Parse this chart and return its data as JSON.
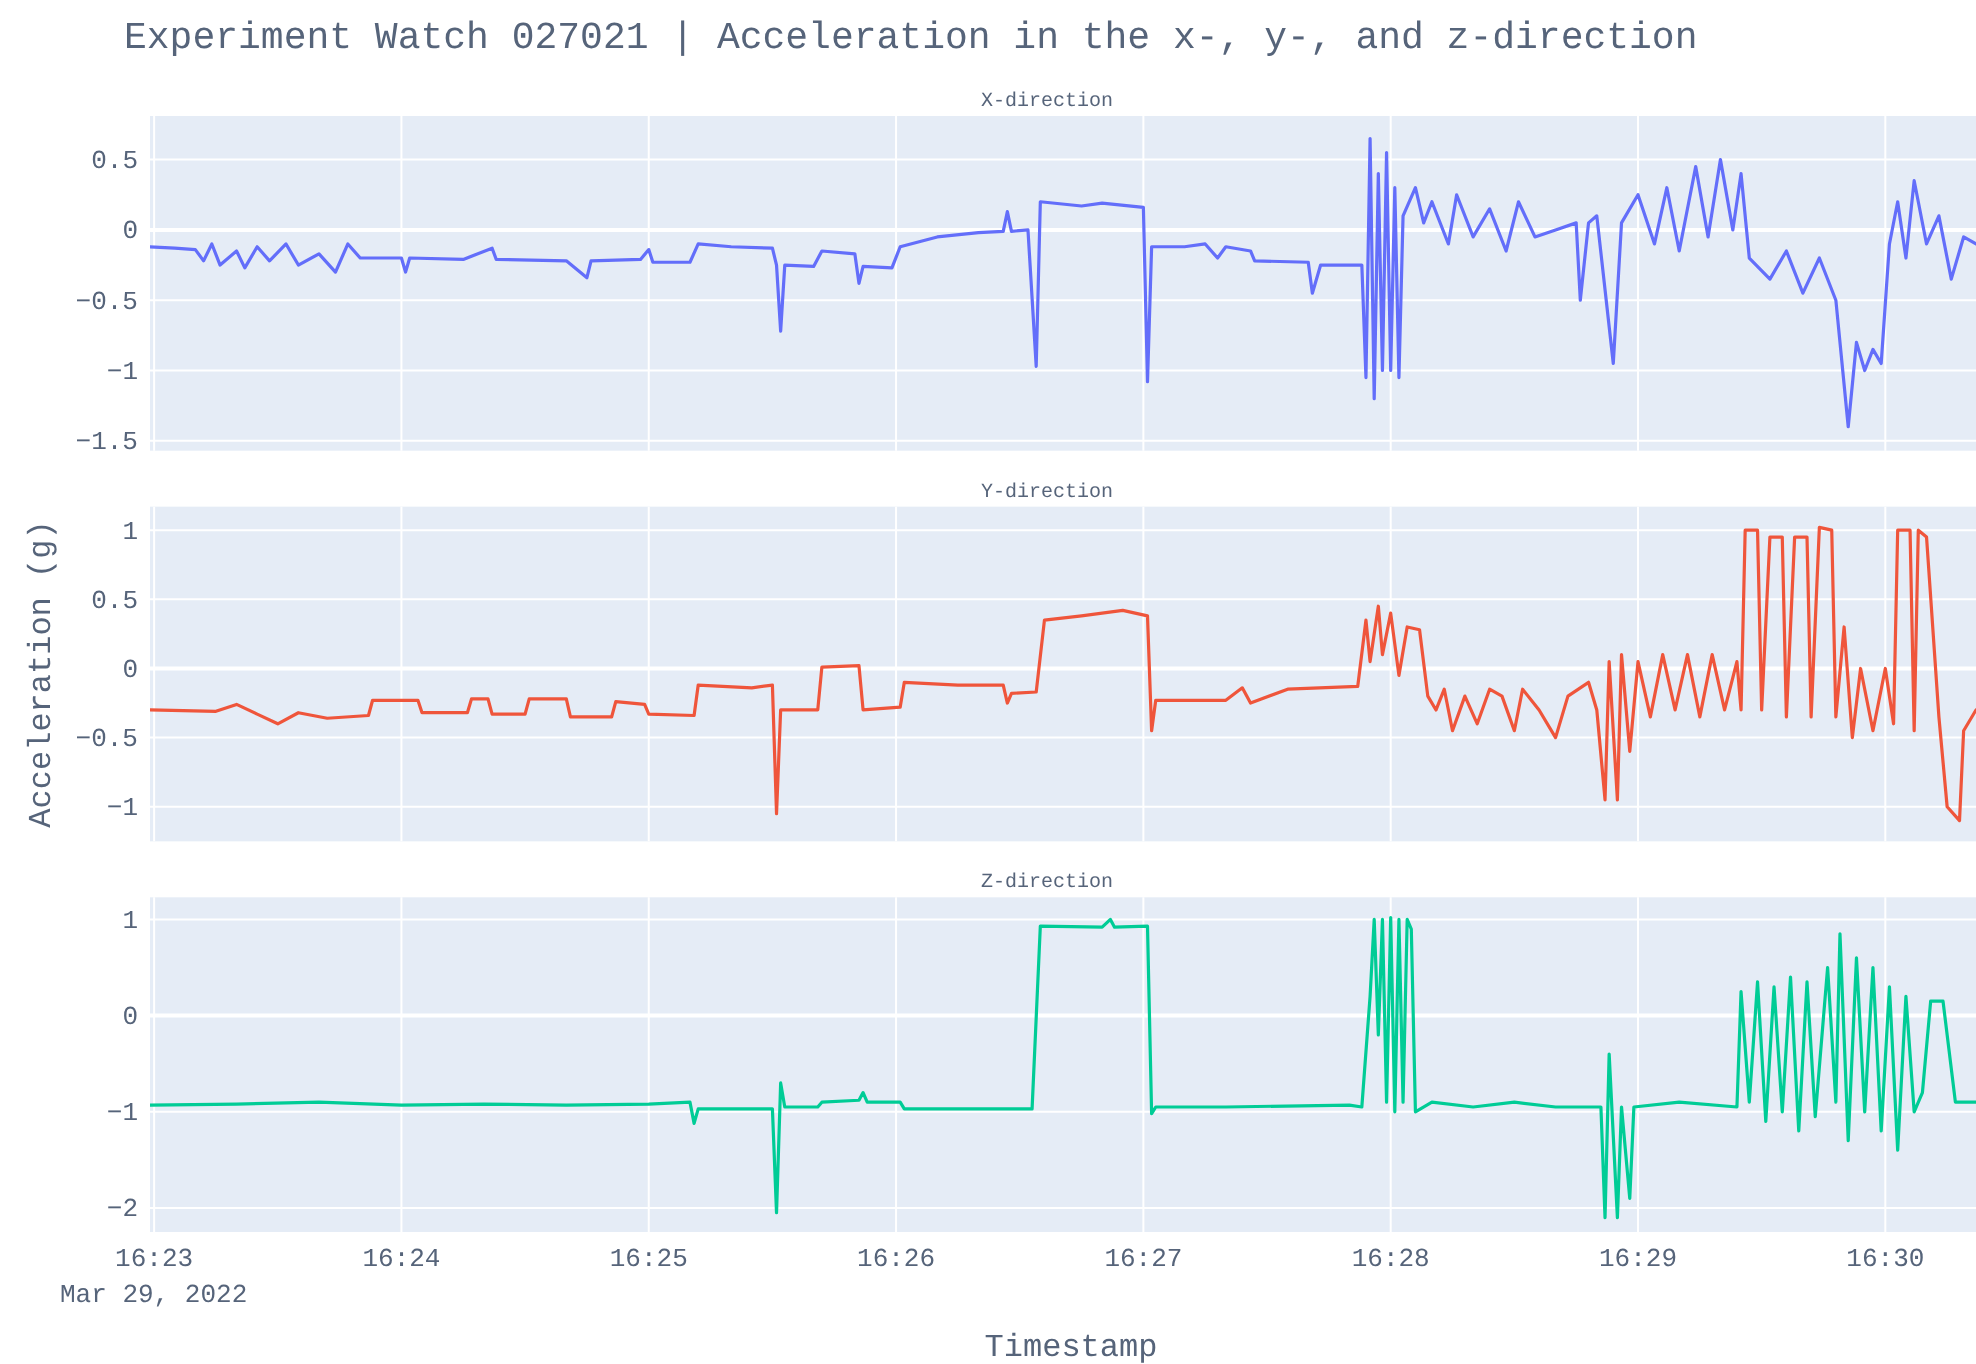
{
  "chart_data": [
    {
      "type": "line",
      "title": "Experiment Watch 027021 | Acceleration in the x-, y-, and z-direction",
      "subtitle": "X-direction",
      "grid": true,
      "tick_labels": "y",
      "xlim": [
        "2022-03-29T16:22:59",
        "2022-03-29T16:30:22"
      ],
      "xticks": [
        {
          "value": "2022-03-29T16:23",
          "label": null
        },
        {
          "value": "2022-03-29T16:24",
          "label": null
        },
        {
          "value": "2022-03-29T16:25",
          "label": null
        },
        {
          "value": "2022-03-29T16:26",
          "label": null
        },
        {
          "value": "2022-03-29T16:27",
          "label": null
        },
        {
          "value": "2022-03-29T16:28",
          "label": null
        },
        {
          "value": "2022-03-29T16:29",
          "label": null
        },
        {
          "value": "2022-03-29T16:30",
          "label": null
        }
      ],
      "ylim": [
        -1.57,
        0.81
      ],
      "yticks": [
        {
          "value": -1.5,
          "label": "−1.5"
        },
        {
          "value": -1,
          "label": "−1"
        },
        {
          "value": -0.5,
          "label": "−0.5"
        },
        0,
        0.5
      ],
      "series": [
        {
          "color": "#636efa",
          "x": [
            "2022-03-29T16:22:59",
            "2022-03-29T16:23:05",
            "2022-03-29T16:23:10",
            "2022-03-29T16:23:12",
            "2022-03-29T16:23:14",
            "2022-03-29T16:23:16",
            "2022-03-29T16:23:20",
            "2022-03-29T16:23:22",
            "2022-03-29T16:23:25",
            "2022-03-29T16:23:28",
            "2022-03-29T16:23:32",
            "2022-03-29T16:23:35",
            "2022-03-29T16:23:40",
            "2022-03-29T16:23:44",
            "2022-03-29T16:23:47",
            "2022-03-29T16:23:50",
            "2022-03-29T16:24:00",
            "2022-03-29T16:24:01",
            "2022-03-29T16:24:02",
            "2022-03-29T16:24:15",
            "2022-03-29T16:24:22",
            "2022-03-29T16:24:23",
            "2022-03-29T16:24:40",
            "2022-03-29T16:24:45",
            "2022-03-29T16:24:46",
            "2022-03-29T16:24:58",
            "2022-03-29T16:25:00",
            "2022-03-29T16:25:01",
            "2022-03-29T16:25:10",
            "2022-03-29T16:25:12",
            "2022-03-29T16:25:20",
            "2022-03-29T16:25:30",
            "2022-03-29T16:25:31",
            "2022-03-29T16:25:32",
            "2022-03-29T16:25:33",
            "2022-03-29T16:25:40",
            "2022-03-29T16:25:42",
            "2022-03-29T16:25:50",
            "2022-03-29T16:25:51",
            "2022-03-29T16:25:52",
            "2022-03-29T16:25:59",
            "2022-03-29T16:26:01",
            "2022-03-29T16:26:10",
            "2022-03-29T16:26:20",
            "2022-03-29T16:26:26",
            "2022-03-29T16:26:27",
            "2022-03-29T16:26:28",
            "2022-03-29T16:26:32",
            "2022-03-29T16:26:34",
            "2022-03-29T16:26:35",
            "2022-03-29T16:26:45",
            "2022-03-29T16:26:50",
            "2022-03-29T16:27:00",
            "2022-03-29T16:27:01",
            "2022-03-29T16:27:02",
            "2022-03-29T16:27:10",
            "2022-03-29T16:27:15",
            "2022-03-29T16:27:18",
            "2022-03-29T16:27:20",
            "2022-03-29T16:27:26",
            "2022-03-29T16:27:27",
            "2022-03-29T16:27:40",
            "2022-03-29T16:27:41",
            "2022-03-29T16:27:43",
            "2022-03-29T16:27:53",
            "2022-03-29T16:27:54",
            "2022-03-29T16:27:55",
            "2022-03-29T16:27:56",
            "2022-03-29T16:27:57",
            "2022-03-29T16:27:58",
            "2022-03-29T16:27:59",
            "2022-03-29T16:28:00",
            "2022-03-29T16:28:01",
            "2022-03-29T16:28:02",
            "2022-03-29T16:28:03",
            "2022-03-29T16:28:06",
            "2022-03-29T16:28:08",
            "2022-03-29T16:28:10",
            "2022-03-29T16:28:14",
            "2022-03-29T16:28:16",
            "2022-03-29T16:28:20",
            "2022-03-29T16:28:24",
            "2022-03-29T16:28:28",
            "2022-03-29T16:28:31",
            "2022-03-29T16:28:35",
            "2022-03-29T16:28:40",
            "2022-03-29T16:28:45",
            "2022-03-29T16:28:46",
            "2022-03-29T16:28:48",
            "2022-03-29T16:28:50",
            "2022-03-29T16:28:54",
            "2022-03-29T16:28:56",
            "2022-03-29T16:29:00",
            "2022-03-29T16:29:04",
            "2022-03-29T16:29:07",
            "2022-03-29T16:29:10",
            "2022-03-29T16:29:14",
            "2022-03-29T16:29:17",
            "2022-03-29T16:29:20",
            "2022-03-29T16:29:23",
            "2022-03-29T16:29:25",
            "2022-03-29T16:29:27",
            "2022-03-29T16:29:32",
            "2022-03-29T16:29:36",
            "2022-03-29T16:29:40",
            "2022-03-29T16:29:44",
            "2022-03-29T16:29:48",
            "2022-03-29T16:29:51",
            "2022-03-29T16:29:53",
            "2022-03-29T16:29:55",
            "2022-03-29T16:29:57",
            "2022-03-29T16:29:59",
            "2022-03-29T16:30:01",
            "2022-03-29T16:30:03",
            "2022-03-29T16:30:05",
            "2022-03-29T16:30:07",
            "2022-03-29T16:30:10",
            "2022-03-29T16:30:13",
            "2022-03-29T16:30:16",
            "2022-03-29T16:30:19",
            "2022-03-29T16:30:22"
          ],
          "values": [
            -0.12,
            -0.13,
            -0.14,
            -0.22,
            -0.1,
            -0.25,
            -0.15,
            -0.27,
            -0.12,
            -0.22,
            -0.1,
            -0.25,
            -0.17,
            -0.3,
            -0.1,
            -0.2,
            -0.2,
            -0.3,
            -0.2,
            -0.21,
            -0.13,
            -0.21,
            -0.22,
            -0.34,
            -0.22,
            -0.21,
            -0.14,
            -0.23,
            -0.23,
            -0.1,
            -0.12,
            -0.13,
            -0.25,
            -0.72,
            -0.25,
            -0.26,
            -0.15,
            -0.17,
            -0.38,
            -0.26,
            -0.27,
            -0.12,
            -0.05,
            -0.02,
            -0.01,
            0.13,
            -0.01,
            0,
            -0.97,
            0.2,
            0.17,
            0.19,
            0.16,
            -1.08,
            -0.12,
            -0.12,
            -0.1,
            -0.2,
            -0.12,
            -0.15,
            -0.22,
            -0.23,
            -0.45,
            -0.25,
            -0.25,
            -1.05,
            0.65,
            -1.2,
            0.4,
            -1,
            0.55,
            -1,
            0.3,
            -1.05,
            0.1,
            0.3,
            0.05,
            0.2,
            -0.1,
            0.25,
            -0.05,
            0.15,
            -0.15,
            0.2,
            -0.05,
            0,
            0.05,
            -0.5,
            0.05,
            0.1,
            -0.95,
            0.05,
            0.25,
            -0.1,
            0.3,
            -0.15,
            0.45,
            -0.05,
            0.5,
            0,
            0.4,
            -0.2,
            -0.35,
            -0.15,
            -0.45,
            -0.2,
            -0.5,
            -1.4,
            -0.8,
            -1,
            -0.85,
            -0.95,
            -0.1,
            0.2,
            -0.2,
            0.35,
            -0.1,
            0.1,
            -0.35,
            -0.05,
            -0.1
          ]
        }
      ]
    },
    {
      "type": "line",
      "subtitle": "Y-direction",
      "ylabel": "Acceleration (g)",
      "grid": true,
      "tick_labels": "y",
      "xlim": [
        "2022-03-29T16:22:59",
        "2022-03-29T16:30:22"
      ],
      "xticks": [
        {
          "value": "2022-03-29T16:23",
          "label": null
        },
        {
          "value": "2022-03-29T16:24",
          "label": null
        },
        {
          "value": "2022-03-29T16:25",
          "label": null
        },
        {
          "value": "2022-03-29T16:26",
          "label": null
        },
        {
          "value": "2022-03-29T16:27",
          "label": null
        },
        {
          "value": "2022-03-29T16:28",
          "label": null
        },
        {
          "value": "2022-03-29T16:29",
          "label": null
        },
        {
          "value": "2022-03-29T16:30",
          "label": null
        }
      ],
      "ylim": [
        -1.25,
        1.17
      ],
      "yticks": [
        {
          "value": -1,
          "label": "−1"
        },
        {
          "value": -0.5,
          "label": "−0.5"
        },
        0,
        0.5,
        1
      ],
      "series": [
        {
          "color": "#ef553b",
          "x": [
            "2022-03-29T16:22:59",
            "2022-03-29T16:23:15",
            "2022-03-29T16:23:20",
            "2022-03-29T16:23:25",
            "2022-03-29T16:23:30",
            "2022-03-29T16:23:35",
            "2022-03-29T16:23:42",
            "2022-03-29T16:23:52",
            "2022-03-29T16:23:53",
            "2022-03-29T16:24:04",
            "2022-03-29T16:24:05",
            "2022-03-29T16:24:16",
            "2022-03-29T16:24:17",
            "2022-03-29T16:24:21",
            "2022-03-29T16:24:22",
            "2022-03-29T16:24:30",
            "2022-03-29T16:24:31",
            "2022-03-29T16:24:40",
            "2022-03-29T16:24:41",
            "2022-03-29T16:24:51",
            "2022-03-29T16:24:52",
            "2022-03-29T16:24:59",
            "2022-03-29T16:25:00",
            "2022-03-29T16:25:11",
            "2022-03-29T16:25:12",
            "2022-03-29T16:25:25",
            "2022-03-29T16:25:30",
            "2022-03-29T16:25:31",
            "2022-03-29T16:25:32",
            "2022-03-29T16:25:41",
            "2022-03-29T16:25:42",
            "2022-03-29T16:25:51",
            "2022-03-29T16:25:52",
            "2022-03-29T16:26:01",
            "2022-03-29T16:26:02",
            "2022-03-29T16:26:15",
            "2022-03-29T16:26:26",
            "2022-03-29T16:26:27",
            "2022-03-29T16:26:28",
            "2022-03-29T16:26:34",
            "2022-03-29T16:26:36",
            "2022-03-29T16:26:45",
            "2022-03-29T16:26:55",
            "2022-03-29T16:27:01",
            "2022-03-29T16:27:02",
            "2022-03-29T16:27:03",
            "2022-03-29T16:27:20",
            "2022-03-29T16:27:24",
            "2022-03-29T16:27:26",
            "2022-03-29T16:27:35",
            "2022-03-29T16:27:52",
            "2022-03-29T16:27:54",
            "2022-03-29T16:27:55",
            "2022-03-29T16:27:57",
            "2022-03-29T16:27:58",
            "2022-03-29T16:28:00",
            "2022-03-29T16:28:02",
            "2022-03-29T16:28:04",
            "2022-03-29T16:28:07",
            "2022-03-29T16:28:09",
            "2022-03-29T16:28:11",
            "2022-03-29T16:28:13",
            "2022-03-29T16:28:15",
            "2022-03-29T16:28:18",
            "2022-03-29T16:28:21",
            "2022-03-29T16:28:24",
            "2022-03-29T16:28:27",
            "2022-03-29T16:28:30",
            "2022-03-29T16:28:32",
            "2022-03-29T16:28:36",
            "2022-03-29T16:28:40",
            "2022-03-29T16:28:43",
            "2022-03-29T16:28:48",
            "2022-03-29T16:28:50",
            "2022-03-29T16:28:52",
            "2022-03-29T16:28:53",
            "2022-03-29T16:28:55",
            "2022-03-29T16:28:56",
            "2022-03-29T16:28:58",
            "2022-03-29T16:29:00",
            "2022-03-29T16:29:03",
            "2022-03-29T16:29:06",
            "2022-03-29T16:29:09",
            "2022-03-29T16:29:12",
            "2022-03-29T16:29:15",
            "2022-03-29T16:29:18",
            "2022-03-29T16:29:21",
            "2022-03-29T16:29:24",
            "2022-03-29T16:29:25",
            "2022-03-29T16:29:26",
            "2022-03-29T16:29:29",
            "2022-03-29T16:29:30",
            "2022-03-29T16:29:32",
            "2022-03-29T16:29:35",
            "2022-03-29T16:29:36",
            "2022-03-29T16:29:38",
            "2022-03-29T16:29:41",
            "2022-03-29T16:29:42",
            "2022-03-29T16:29:44",
            "2022-03-29T16:29:47",
            "2022-03-29T16:29:48",
            "2022-03-29T16:29:50",
            "2022-03-29T16:29:52",
            "2022-03-29T16:29:54",
            "2022-03-29T16:29:57",
            "2022-03-29T16:30:00",
            "2022-03-29T16:30:02",
            "2022-03-29T16:30:03",
            "2022-03-29T16:30:06",
            "2022-03-29T16:30:07",
            "2022-03-29T16:30:08",
            "2022-03-29T16:30:10",
            "2022-03-29T16:30:13",
            "2022-03-29T16:30:15",
            "2022-03-29T16:30:18",
            "2022-03-29T16:30:19",
            "2022-03-29T16:30:22"
          ],
          "values": [
            -0.3,
            -0.31,
            -0.26,
            -0.33,
            -0.4,
            -0.32,
            -0.36,
            -0.34,
            -0.23,
            -0.23,
            -0.32,
            -0.32,
            -0.22,
            -0.22,
            -0.33,
            -0.33,
            -0.22,
            -0.22,
            -0.35,
            -0.35,
            -0.24,
            -0.26,
            -0.33,
            -0.34,
            -0.12,
            -0.14,
            -0.12,
            -1.05,
            -0.3,
            -0.3,
            0.01,
            0.02,
            -0.3,
            -0.28,
            -0.1,
            -0.12,
            -0.12,
            -0.25,
            -0.18,
            -0.17,
            0.35,
            0.38,
            0.42,
            0.38,
            -0.45,
            -0.23,
            -0.23,
            -0.14,
            -0.25,
            -0.15,
            -0.13,
            0.35,
            0.05,
            0.45,
            0.1,
            0.4,
            -0.05,
            0.3,
            0.28,
            -0.2,
            -0.3,
            -0.15,
            -0.45,
            -0.2,
            -0.4,
            -0.15,
            -0.2,
            -0.45,
            -0.15,
            -0.3,
            -0.5,
            -0.2,
            -0.1,
            -0.3,
            -0.95,
            0.05,
            -0.95,
            0.1,
            -0.6,
            0.05,
            -0.35,
            0.1,
            -0.3,
            0.1,
            -0.35,
            0.1,
            -0.3,
            0.05,
            -0.3,
            1,
            1,
            -0.3,
            0.95,
            0.95,
            -0.35,
            0.95,
            0.95,
            -0.35,
            1.02,
            1,
            -0.35,
            0.3,
            -0.5,
            0,
            -0.45,
            0,
            -0.4,
            1,
            1,
            -0.45,
            1,
            0.95,
            -0.35,
            -1,
            -1.1,
            -0.45,
            -0.3
          ]
        }
      ]
    },
    {
      "type": "line",
      "subtitle": "Z-direction",
      "xlabel": "Timestamp",
      "annotations": [
        "Mar 29, 2022"
      ],
      "grid": true,
      "xlim": [
        "2022-03-29T16:22:59",
        "2022-03-29T16:30:22"
      ],
      "xticks": [
        {
          "value": "2022-03-29T16:23",
          "label": "16:23"
        },
        {
          "value": "2022-03-29T16:24",
          "label": "16:24"
        },
        {
          "value": "2022-03-29T16:25",
          "label": "16:25"
        },
        {
          "value": "2022-03-29T16:26",
          "label": "16:26"
        },
        {
          "value": "2022-03-29T16:27",
          "label": "16:27"
        },
        {
          "value": "2022-03-29T16:28",
          "label": "16:28"
        },
        {
          "value": "2022-03-29T16:29",
          "label": "16:29"
        },
        {
          "value": "2022-03-29T16:30",
          "label": "16:30"
        }
      ],
      "ylim": [
        -2.25,
        1.23
      ],
      "yticks": [
        {
          "value": -2,
          "label": "−2"
        },
        {
          "value": -1,
          "label": "−1"
        },
        0,
        1
      ],
      "series": [
        {
          "color": "#00cc96",
          "x": [
            "2022-03-29T16:22:59",
            "2022-03-29T16:23:20",
            "2022-03-29T16:23:40",
            "2022-03-29T16:24:00",
            "2022-03-29T16:24:20",
            "2022-03-29T16:24:40",
            "2022-03-29T16:25:00",
            "2022-03-29T16:25:10",
            "2022-03-29T16:25:11",
            "2022-03-29T16:25:12",
            "2022-03-29T16:25:30",
            "2022-03-29T16:25:31",
            "2022-03-29T16:25:32",
            "2022-03-29T16:25:33",
            "2022-03-29T16:25:41",
            "2022-03-29T16:25:42",
            "2022-03-29T16:25:51",
            "2022-03-29T16:25:52",
            "2022-03-29T16:25:53",
            "2022-03-29T16:26:01",
            "2022-03-29T16:26:02",
            "2022-03-29T16:26:33",
            "2022-03-29T16:26:35",
            "2022-03-29T16:26:50",
            "2022-03-29T16:26:52",
            "2022-03-29T16:26:53",
            "2022-03-29T16:27:01",
            "2022-03-29T16:27:02",
            "2022-03-29T16:27:03",
            "2022-03-29T16:27:20",
            "2022-03-29T16:27:50",
            "2022-03-29T16:27:53",
            "2022-03-29T16:27:55",
            "2022-03-29T16:27:56",
            "2022-03-29T16:27:57",
            "2022-03-29T16:27:58",
            "2022-03-29T16:27:59",
            "2022-03-29T16:28:00",
            "2022-03-29T16:28:01",
            "2022-03-29T16:28:02",
            "2022-03-29T16:28:03",
            "2022-03-29T16:28:04",
            "2022-03-29T16:28:05",
            "2022-03-29T16:28:06",
            "2022-03-29T16:28:10",
            "2022-03-29T16:28:20",
            "2022-03-29T16:28:30",
            "2022-03-29T16:28:40",
            "2022-03-29T16:28:51",
            "2022-03-29T16:28:52",
            "2022-03-29T16:28:53",
            "2022-03-29T16:28:55",
            "2022-03-29T16:28:56",
            "2022-03-29T16:28:58",
            "2022-03-29T16:28:59",
            "2022-03-29T16:29:10",
            "2022-03-29T16:29:24",
            "2022-03-29T16:29:25",
            "2022-03-29T16:29:27",
            "2022-03-29T16:29:29",
            "2022-03-29T16:29:31",
            "2022-03-29T16:29:33",
            "2022-03-29T16:29:35",
            "2022-03-29T16:29:37",
            "2022-03-29T16:29:39",
            "2022-03-29T16:29:41",
            "2022-03-29T16:29:43",
            "2022-03-29T16:29:46",
            "2022-03-29T16:29:48",
            "2022-03-29T16:29:49",
            "2022-03-29T16:29:51",
            "2022-03-29T16:29:53",
            "2022-03-29T16:29:55",
            "2022-03-29T16:29:57",
            "2022-03-29T16:29:59",
            "2022-03-29T16:30:01",
            "2022-03-29T16:30:03",
            "2022-03-29T16:30:05",
            "2022-03-29T16:30:07",
            "2022-03-29T16:30:09",
            "2022-03-29T16:30:11",
            "2022-03-29T16:30:14",
            "2022-03-29T16:30:17",
            "2022-03-29T16:30:22"
          ],
          "values": [
            -0.93,
            -0.92,
            -0.9,
            -0.93,
            -0.92,
            -0.93,
            -0.92,
            -0.9,
            -1.12,
            -0.97,
            -0.97,
            -2.05,
            -0.7,
            -0.95,
            -0.95,
            -0.9,
            -0.88,
            -0.8,
            -0.9,
            -0.9,
            -0.97,
            -0.97,
            0.93,
            0.92,
            1,
            0.92,
            0.93,
            -1.02,
            -0.95,
            -0.95,
            -0.93,
            -0.95,
            0.2,
            1,
            -0.2,
            1,
            -0.9,
            1.02,
            -1,
            1,
            -0.9,
            1,
            0.9,
            -1,
            -0.9,
            -0.95,
            -0.9,
            -0.95,
            -0.95,
            -2.1,
            -0.4,
            -2.1,
            -0.95,
            -1.9,
            -0.95,
            -0.9,
            -0.95,
            0.25,
            -0.9,
            0.35,
            -1.1,
            0.3,
            -1,
            0.4,
            -1.2,
            0.35,
            -1.05,
            0.5,
            -0.9,
            0.85,
            -1.3,
            0.6,
            -1,
            0.5,
            -1.2,
            0.3,
            -1.4,
            0.2,
            -1,
            -0.8,
            0.15,
            0.15,
            -0.9,
            -0.9
          ]
        }
      ]
    }
  ]
}
